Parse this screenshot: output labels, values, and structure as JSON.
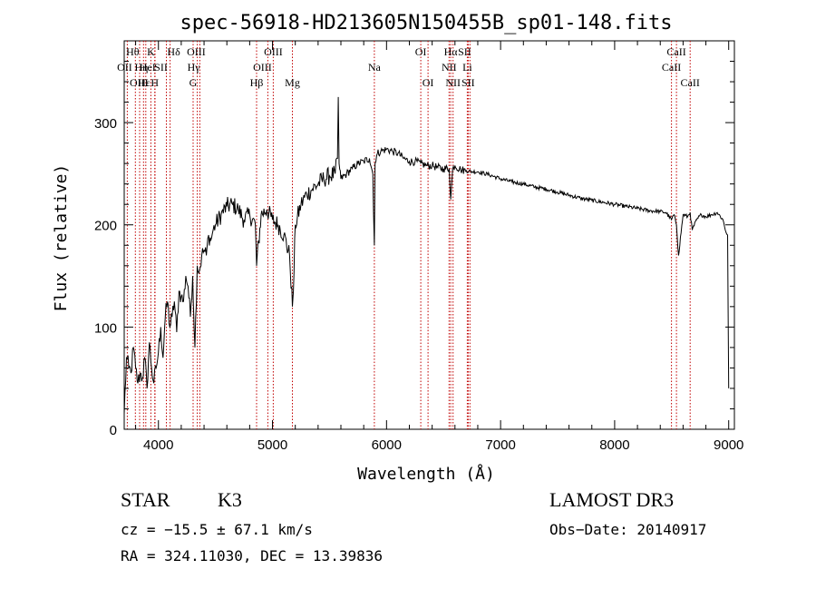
{
  "chart_data": {
    "type": "line",
    "title": "spec-56918-HD213605N150455B_sp01-148.fits",
    "xlabel": "Wavelength (Å)",
    "ylabel": "Flux (relative)",
    "xlim": [
      3700,
      9050
    ],
    "ylim": [
      0,
      380
    ],
    "xticks": [
      4000,
      5000,
      6000,
      7000,
      8000,
      9000
    ],
    "xtick_labels": [
      "4000",
      "5000",
      "6000",
      "7000",
      "8000",
      "9000"
    ],
    "yticks": [
      0,
      100,
      200,
      300
    ],
    "ytick_labels": [
      "0",
      "100",
      "200",
      "300"
    ],
    "series": [
      {
        "name": "spectrum",
        "x": [
          3700,
          3720,
          3740,
          3760,
          3780,
          3800,
          3820,
          3840,
          3860,
          3880,
          3900,
          3920,
          3940,
          3960,
          3980,
          4000,
          4020,
          4040,
          4060,
          4080,
          4100,
          4120,
          4140,
          4160,
          4180,
          4200,
          4220,
          4240,
          4260,
          4280,
          4300,
          4320,
          4340,
          4360,
          4380,
          4400,
          4420,
          4440,
          4460,
          4480,
          4500,
          4550,
          4600,
          4650,
          4700,
          4750,
          4800,
          4850,
          4861,
          4900,
          4950,
          5000,
          5050,
          5100,
          5150,
          5175,
          5183,
          5200,
          5250,
          5300,
          5350,
          5400,
          5450,
          5500,
          5550,
          5570,
          5577,
          5584,
          5600,
          5650,
          5700,
          5750,
          5800,
          5850,
          5880,
          5893,
          5900,
          5920,
          5950,
          6000,
          6050,
          6100,
          6150,
          6200,
          6250,
          6300,
          6350,
          6400,
          6450,
          6500,
          6550,
          6563,
          6580,
          6600,
          6650,
          6700,
          6750,
          6800,
          6900,
          7000,
          7100,
          7200,
          7300,
          7400,
          7500,
          7600,
          7700,
          7800,
          7900,
          8000,
          8100,
          8200,
          8300,
          8400,
          8450,
          8498,
          8520,
          8542,
          8560,
          8600,
          8640,
          8662,
          8680,
          8720,
          8760,
          8800,
          8850,
          8900,
          8950,
          8970,
          8990,
          9000
        ],
        "y": [
          15,
          70,
          60,
          55,
          80,
          60,
          45,
          55,
          50,
          70,
          40,
          85,
          60,
          45,
          60,
          75,
          100,
          70,
          110,
          125,
          100,
          110,
          125,
          95,
          135,
          130,
          125,
          150,
          140,
          110,
          150,
          80,
          160,
          155,
          170,
          175,
          170,
          190,
          185,
          195,
          200,
          210,
          218,
          220,
          215,
          205,
          210,
          200,
          160,
          210,
          215,
          205,
          200,
          190,
          170,
          120,
          135,
          200,
          220,
          230,
          235,
          240,
          245,
          248,
          250,
          265,
          325,
          260,
          245,
          250,
          255,
          260,
          262,
          265,
          250,
          180,
          260,
          270,
          272,
          274,
          272,
          270,
          265,
          262,
          262,
          260,
          258,
          258,
          256,
          255,
          255,
          225,
          255,
          258,
          254,
          253,
          252,
          252,
          249,
          245,
          242,
          240,
          237,
          235,
          232,
          229,
          226,
          224,
          222,
          220,
          218,
          216,
          214,
          213,
          212,
          205,
          210,
          200,
          170,
          210,
          208,
          212,
          195,
          205,
          210,
          208,
          210,
          212,
          205,
          195,
          190,
          40
        ]
      }
    ],
    "spectral_lines": [
      {
        "labels": [
          "Hθ"
        ],
        "wavelength": 3798,
        "dx": -3,
        "rows": [
          0
        ]
      },
      {
        "labels": [
          "OII"
        ],
        "wavelength": 3727,
        "dx": -3,
        "rows": [
          1
        ]
      },
      {
        "labels": [
          "OIII"
        ],
        "wavelength": 3869,
        "dx": -5,
        "rows": [
          2
        ]
      },
      {
        "labels": [
          "Hη"
        ],
        "wavelength": 3835,
        "dx": 2,
        "rows": [
          1
        ]
      },
      {
        "labels": [
          "HeI"
        ],
        "wavelength": 3889,
        "dx": 2,
        "rows": [
          1
        ]
      },
      {
        "labels": [
          "Hε"
        ],
        "wavelength": 3970,
        "dx": -12,
        "rows": [
          2
        ]
      },
      {
        "labels": [
          "K"
        ],
        "wavelength": 3934,
        "dx": 0,
        "rows": [
          0
        ]
      },
      {
        "labels": [
          "H"
        ],
        "wavelength": 3968,
        "dx": 0,
        "rows": [
          2
        ]
      },
      {
        "labels": [
          "SII"
        ],
        "wavelength": 4070,
        "dx": -6,
        "rows": [
          1
        ]
      },
      {
        "labels": [
          "Hδ"
        ],
        "wavelength": 4102,
        "dx": 4,
        "rows": [
          0
        ]
      },
      {
        "labels": [
          "G"
        ],
        "wavelength": 4304,
        "dx": 0,
        "rows": [
          2
        ]
      },
      {
        "labels": [
          "Hγ"
        ],
        "wavelength": 4341,
        "dx": -4,
        "rows": [
          1
        ]
      },
      {
        "labels": [
          "OIII"
        ],
        "wavelength": 4363,
        "dx": -4,
        "rows": [
          0
        ]
      },
      {
        "labels": [
          "Hβ"
        ],
        "wavelength": 4861,
        "dx": 0,
        "rows": [
          2
        ]
      },
      {
        "labels": [
          "OIII"
        ],
        "wavelength": 4959,
        "dx": -6,
        "rows": [
          1
        ]
      },
      {
        "labels": [
          "OIII"
        ],
        "wavelength": 5007,
        "dx": 0,
        "rows": [
          0
        ]
      },
      {
        "labels": [
          "Mg"
        ],
        "wavelength": 5175,
        "dx": 0,
        "rows": [
          2
        ]
      },
      {
        "labels": [
          "Na"
        ],
        "wavelength": 5893,
        "dx": 0,
        "rows": [
          1
        ]
      },
      {
        "labels": [
          "OI"
        ],
        "wavelength": 6300,
        "dx": 0,
        "rows": [
          0
        ]
      },
      {
        "labels": [
          "OI"
        ],
        "wavelength": 6364,
        "dx": 0,
        "rows": [
          2
        ]
      },
      {
        "labels": [
          "NII"
        ],
        "wavelength": 6548,
        "dx": 0,
        "rows": [
          1
        ]
      },
      {
        "labels": [
          "Hα"
        ],
        "wavelength": 6563,
        "dx": 0,
        "rows": [
          0
        ]
      },
      {
        "labels": [
          "NII"
        ],
        "wavelength": 6583,
        "dx": 0,
        "rows": [
          2
        ]
      },
      {
        "labels": [
          "SII"
        ],
        "wavelength": 6716,
        "dx": -4,
        "rows": [
          0
        ]
      },
      {
        "labels": [
          "Li"
        ],
        "wavelength": 6708,
        "dx": 0,
        "rows": [
          1
        ]
      },
      {
        "labels": [
          "SII"
        ],
        "wavelength": 6731,
        "dx": -2,
        "rows": [
          2
        ]
      },
      {
        "labels": [
          "CaII"
        ],
        "wavelength": 8498,
        "dx": 0,
        "rows": [
          1
        ]
      },
      {
        "labels": [
          "CaII"
        ],
        "wavelength": 8542,
        "dx": 0,
        "rows": [
          0
        ]
      },
      {
        "labels": [
          "CaII"
        ],
        "wavelength": 8662,
        "dx": 0,
        "rows": [
          2
        ]
      }
    ]
  },
  "info": {
    "class": "STAR",
    "subclass": "K3",
    "survey": "LAMOST DR3",
    "cz": "cz = −15.5 ± 67.1 km/s",
    "obs_date": "Obs−Date: 20140917",
    "radec": "RA = 324.11030, DEC =  13.39836"
  },
  "colors": {
    "line_markers": "#c00000",
    "spectrum": "#000000"
  }
}
